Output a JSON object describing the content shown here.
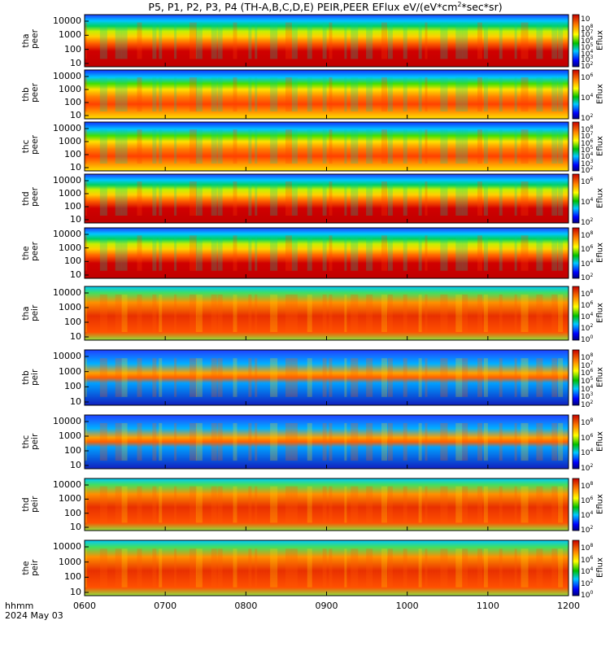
{
  "title": {
    "prefix": "P5, P1, P2, P3, P4 (TH-A,B,C,D,E) PEIR,PEER EFlux eV/(eV*cm",
    "exp": "2",
    "suffix": "*sec*sr)"
  },
  "footer": {
    "hhmm": "hhmm",
    "date": "2024 May 03"
  },
  "chart_data": {
    "type": "heatmap",
    "x_tick_labels": [
      "0600",
      "0700",
      "0800",
      "0900",
      "1000",
      "1100",
      "1200"
    ],
    "x_range": [
      "0600",
      "1200"
    ],
    "y_tick_labels": [
      "10000",
      "1000",
      "100",
      "10"
    ],
    "y_scale": "log",
    "colorbar_label": "Eflux",
    "colors": {
      "high": "#c80000",
      "mid": "#ffd700",
      "low": "#00c000",
      "lowest": "#0000ff"
    },
    "panels": [
      {
        "label": "tha\npeer",
        "cb_ticks": [
          "10",
          "10^8",
          "10^7",
          "10^6",
          "10^5",
          "10^4",
          "10^3",
          "10^2"
        ]
      },
      {
        "label": "thb\npeer",
        "cb_ticks": [
          "10^6",
          "10^4",
          "10^2"
        ]
      },
      {
        "label": "thc\npeer",
        "cb_ticks": [
          "10^8",
          "10^7",
          "10^6",
          "10^5",
          "10^4",
          "10^3",
          "10^2"
        ]
      },
      {
        "label": "thd\npeer",
        "cb_ticks": [
          "10^6",
          "10^4",
          "10^2"
        ]
      },
      {
        "label": "the\npeer",
        "cb_ticks": [
          "10^8",
          "10^6",
          "10^4",
          "10^2"
        ]
      },
      {
        "label": "tha\npeir",
        "cb_ticks": [
          "10^8",
          "10^6",
          "10^4",
          "10^2",
          "10^0"
        ]
      },
      {
        "label": "thb\npeir",
        "cb_ticks": [
          "10^8",
          "10^7",
          "10^6",
          "10^5",
          "10^4",
          "10^3",
          "10^2"
        ]
      },
      {
        "label": "thc\npeir",
        "cb_ticks": [
          "10^8",
          "10^6",
          "10^4",
          "10^2"
        ]
      },
      {
        "label": "thd\npeir",
        "cb_ticks": [
          "10^8",
          "10^6",
          "10^4",
          "10^2"
        ]
      },
      {
        "label": "the\npeir",
        "cb_ticks": [
          "10^8",
          "10^6",
          "10^4",
          "10^2",
          "10^0"
        ]
      }
    ]
  }
}
